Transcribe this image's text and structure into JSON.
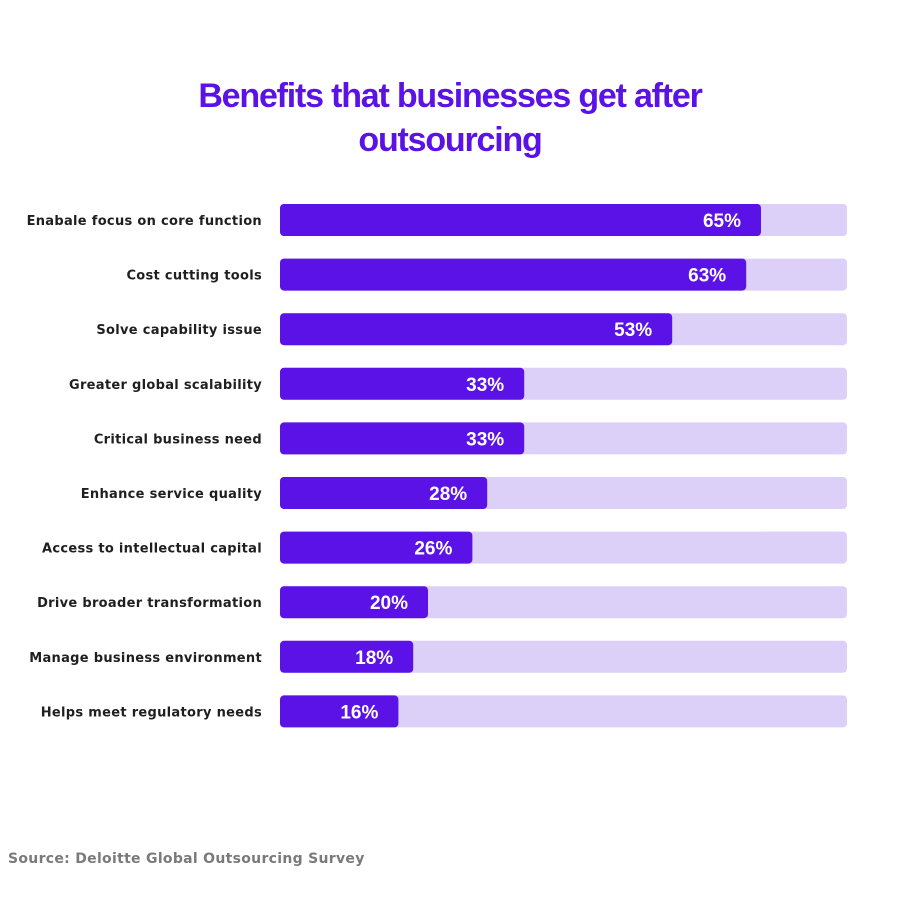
{
  "colors": {
    "title": "#5b12e6",
    "bar_fill": "#5b12e6",
    "bar_track": "#dcd0f8",
    "label_text": "#1f1f1f",
    "value_text": "#ffffff",
    "source_text": "#7a7a7a",
    "background": "#ffffff"
  },
  "chart_data": {
    "type": "bar",
    "orientation": "horizontal",
    "title": "Benefits that businesses get after outsourcing",
    "categories": [
      "Enabale focus on core function",
      "Cost cutting tools",
      "Solve capability issue",
      "Greater global scalability",
      "Critical business need",
      "Enhance service quality",
      "Access to intellectual capital",
      "Drive broader transformation",
      "Manage business environment",
      "Helps meet regulatory needs"
    ],
    "values": [
      65,
      63,
      53,
      33,
      33,
      28,
      26,
      20,
      18,
      16
    ],
    "value_labels": [
      "65%",
      "63%",
      "53%",
      "33%",
      "33%",
      "28%",
      "26%",
      "20%",
      "18%",
      "16%"
    ],
    "unit": "%",
    "xlim": [
      0,
      100
    ],
    "grid": false,
    "legend": "none"
  },
  "source": "Source: Deloitte Global Outsourcing Survey"
}
